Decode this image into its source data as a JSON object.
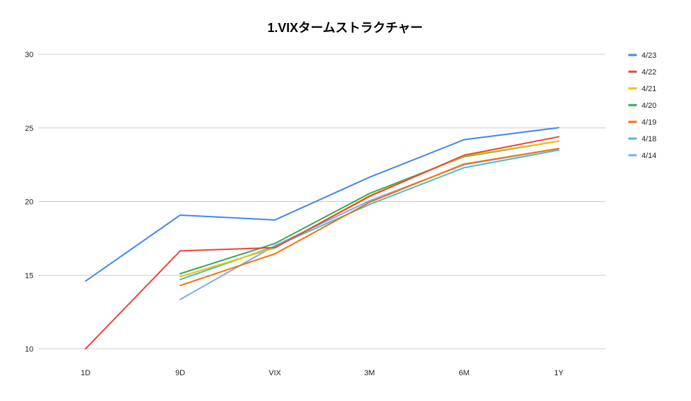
{
  "chart_data": {
    "type": "line",
    "title": "1.VIXタームストラクチャー",
    "xlabel": "",
    "ylabel": "",
    "categories": [
      "1D",
      "9D",
      "VIX",
      "3M",
      "6M",
      "1Y"
    ],
    "ylim": [
      10,
      30
    ],
    "yticks": [
      10,
      15,
      20,
      25,
      30
    ],
    "grid": true,
    "legend_position": "right",
    "series": [
      {
        "name": "4/23",
        "color": "#4285f4",
        "values": [
          14.6,
          19.08,
          18.75,
          21.65,
          24.2,
          25.02
        ]
      },
      {
        "name": "4/22",
        "color": "#ea4335",
        "values": [
          10.0,
          16.65,
          16.87,
          20.35,
          23.15,
          24.4
        ]
      },
      {
        "name": "4/21",
        "color": "#fbbc04",
        "values": [
          null,
          14.9,
          16.85,
          20.4,
          23.1,
          24.1
        ]
      },
      {
        "name": "4/20",
        "color": "#34a853",
        "values": [
          null,
          15.1,
          17.15,
          20.55,
          23.05,
          24.1
        ]
      },
      {
        "name": "4/19",
        "color": "#ff6d01",
        "values": [
          null,
          14.3,
          16.45,
          19.95,
          22.55,
          23.6
        ]
      },
      {
        "name": "4/18",
        "color": "#46bdc6",
        "values": [
          null,
          14.7,
          16.95,
          19.8,
          22.3,
          23.5
        ]
      },
      {
        "name": "4/14",
        "color": "#7baaf7",
        "values": [
          null,
          13.35,
          17.0,
          20.05,
          22.5,
          23.6
        ]
      }
    ]
  }
}
